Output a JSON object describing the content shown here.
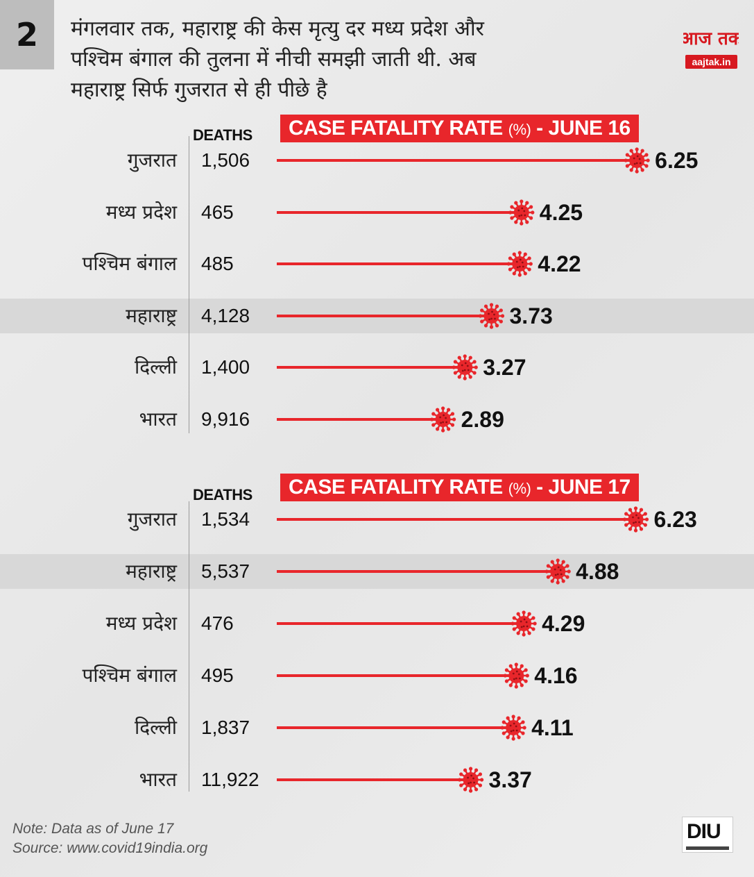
{
  "header": {
    "number": "2",
    "intro_lines": [
      "मंगलवार तक, महाराष्ट्र की केस मृत्यु दर मध्य प्रदेश और",
      "पश्चिम बंगाल की तुलना में नीची समझी जाती थी. अब",
      "महाराष्ट्र सिर्फ गुजरात से ही पीछे है"
    ],
    "logo_text": "आज तक",
    "logo_sub": "aajtak.in"
  },
  "colors": {
    "accent": "#e8262b",
    "text": "#111111",
    "shade": "#d8d8d8"
  },
  "chart_data": [
    {
      "type": "bar",
      "title": "CASE FATALITY RATE",
      "title_unit": "(%)",
      "title_date": "- JUNE 16",
      "deaths_header": "DEATHS",
      "categories": [
        "गुजरात",
        "मध्य प्रदेश",
        "पश्चिम बंगाल",
        "महाराष्ट्र",
        "दिल्ली",
        "भारत"
      ],
      "deaths": [
        "1,506",
        "465",
        "485",
        "4,128",
        "1,400",
        "9,916"
      ],
      "values": [
        6.25,
        4.25,
        4.22,
        3.73,
        3.27,
        2.89
      ],
      "value_labels": [
        "6.25",
        "4.25",
        "4.22",
        "3.73",
        "3.27",
        "2.89"
      ],
      "highlight_index": 3,
      "marker": "virus-icon"
    },
    {
      "type": "bar",
      "title": "CASE FATALITY RATE",
      "title_unit": "(%)",
      "title_date": "- JUNE 17",
      "deaths_header": "DEATHS",
      "categories": [
        "गुजरात",
        "महाराष्ट्र",
        "मध्य प्रदेश",
        "पश्चिम बंगाल",
        "दिल्ली",
        "भारत"
      ],
      "deaths": [
        "1,534",
        "5,537",
        "476",
        "495",
        "1,837",
        "11,922"
      ],
      "values": [
        6.23,
        4.88,
        4.29,
        4.16,
        4.11,
        3.37
      ],
      "value_labels": [
        "6.23",
        "4.88",
        "4.29",
        "4.16",
        "4.11",
        "3.37"
      ],
      "highlight_index": 1,
      "marker": "virus-icon"
    }
  ],
  "footer": {
    "note": "Note: Data as of June 17",
    "source": "Source: www.covid19india.org",
    "brand": "DIU"
  }
}
